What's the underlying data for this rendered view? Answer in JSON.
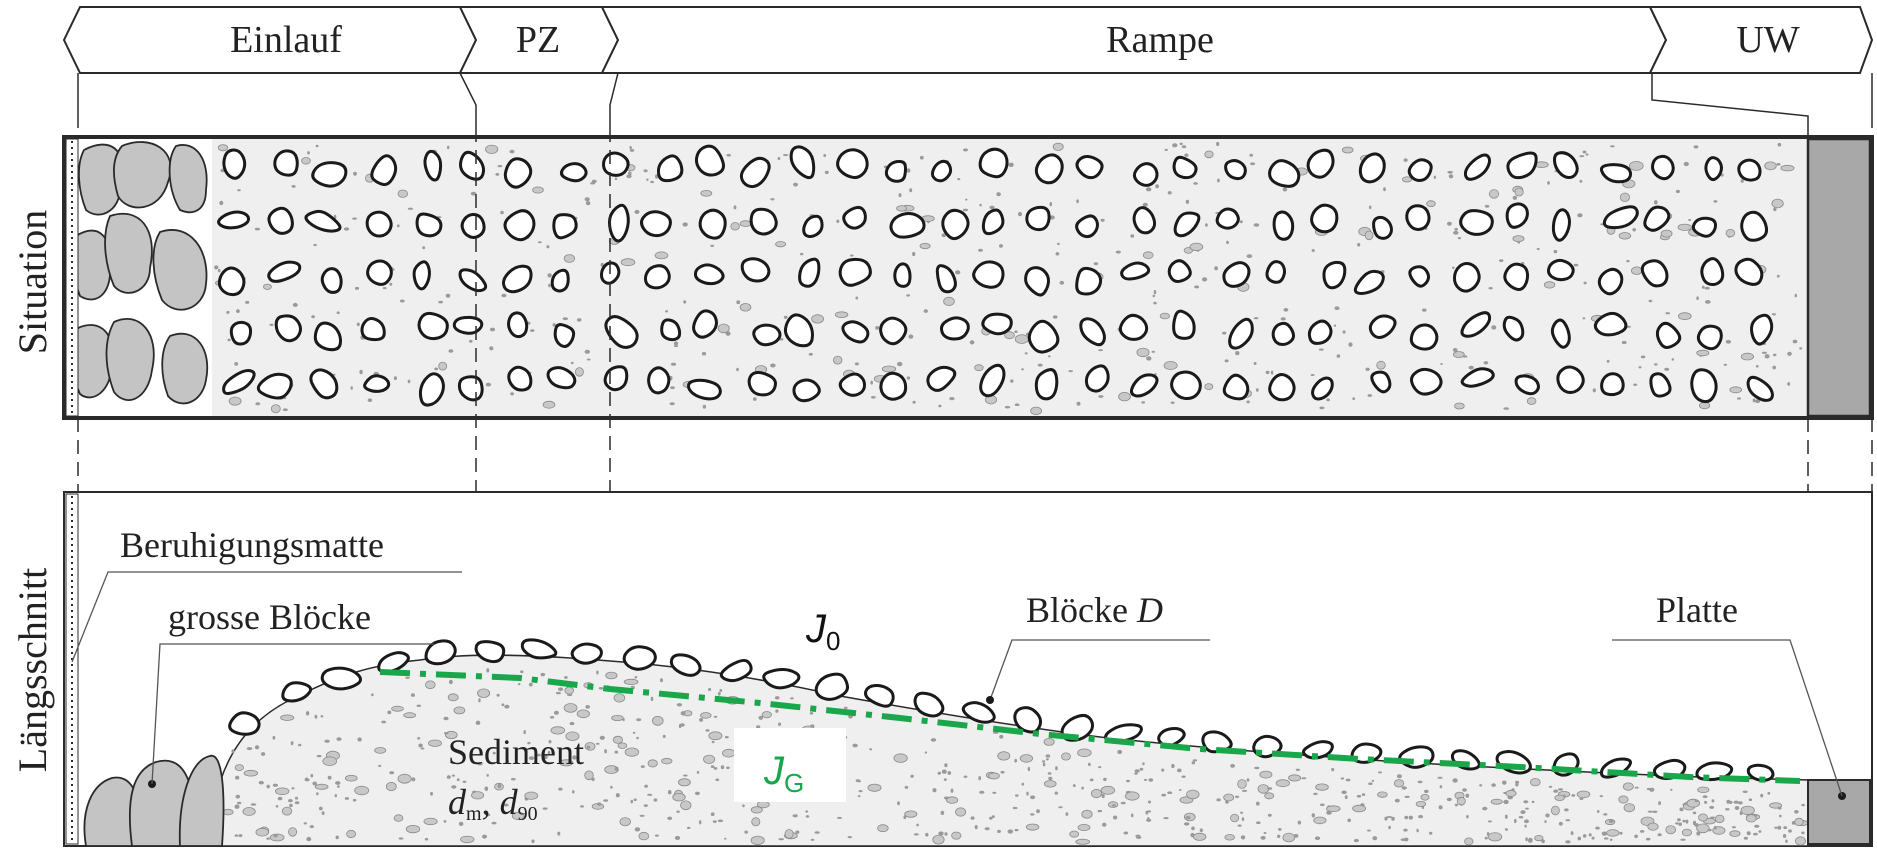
{
  "header": {
    "sections": [
      {
        "id": "einlauf",
        "label": "Einlauf"
      },
      {
        "id": "pz",
        "label": "PZ"
      },
      {
        "id": "rampe",
        "label": "Rampe"
      },
      {
        "id": "uw",
        "label": "UW"
      }
    ]
  },
  "views": {
    "situation_label": "Situation",
    "laengsschnitt_label": "Längsschnitt"
  },
  "labels": {
    "beruhigungsmatte": "Beruhigungsmatte",
    "grosse_bloecke": "grosse Blöcke",
    "bloecke_prefix": "Blöcke ",
    "bloecke_symbol": "D",
    "platte": "Platte",
    "sediment": "Sediment",
    "d_m_base": "d",
    "d_m_sub": "m",
    "separator": ", ",
    "d_90_base": "d",
    "d_90_sub": "90",
    "j0_base": "J",
    "j0_sub": "0",
    "jg_base": "J",
    "jg_sub": "G"
  },
  "colors": {
    "line": "#2a2a2a",
    "fill_light": "#efefef",
    "block_grey": "#c4c4c4",
    "plate_grey": "#a8a8a8",
    "pebble_grey": "#b8b8b8",
    "green": "#1aa64a"
  }
}
